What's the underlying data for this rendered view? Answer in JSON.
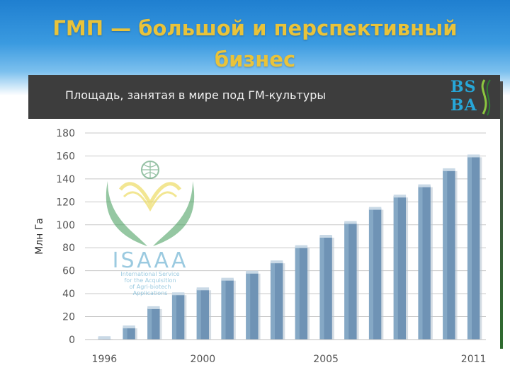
{
  "slide": {
    "title": "ГМП — большой и перспективный\nбизнес"
  },
  "colors": {
    "header_blue": "#2f8fd8",
    "title_gold": "#e9c33a",
    "band_dark": "#3d3d3d",
    "bar_blue": "#6f93b5",
    "bar_top": "#c9d9e6",
    "logo_green": "#8cc63f",
    "logo_yellow": "#e9d33a",
    "brand_cyan": "#27a7d8"
  },
  "brand_logo": {
    "icon": "bsba-logo",
    "text_lines": [
      "BS",
      "BA"
    ]
  },
  "watermark": {
    "icon": "isaaa-logo",
    "name": "ISAAA",
    "subtitle_lines": [
      "International Service",
      "for the Acquisition",
      "of Agri-biotech",
      "Applications"
    ]
  },
  "chart_data": {
    "type": "bar",
    "title": "Площадь, занятая в мире под ГМ-культуры",
    "xlabel": "",
    "ylabel": "Млн Га",
    "ylim": [
      0,
      180
    ],
    "yticks": [
      0,
      20,
      40,
      60,
      80,
      100,
      120,
      140,
      160,
      180
    ],
    "grid": true,
    "categories": [
      "1996",
      "1997",
      "1998",
      "1999",
      "2000",
      "2001",
      "2002",
      "2003",
      "2004",
      "2005",
      "2006",
      "2007",
      "2008",
      "2009",
      "2010",
      "2011"
    ],
    "x_tick_labels": [
      "1996",
      "",
      "",
      "",
      "2000",
      "",
      "",
      "",
      "",
      "2005",
      "",
      "",
      "",
      "",
      "",
      "2011"
    ],
    "values": [
      1.7,
      11,
      27.8,
      39.9,
      44.2,
      52.6,
      58.7,
      67.7,
      81,
      90,
      102,
      114.3,
      125,
      134,
      148,
      160
    ]
  }
}
